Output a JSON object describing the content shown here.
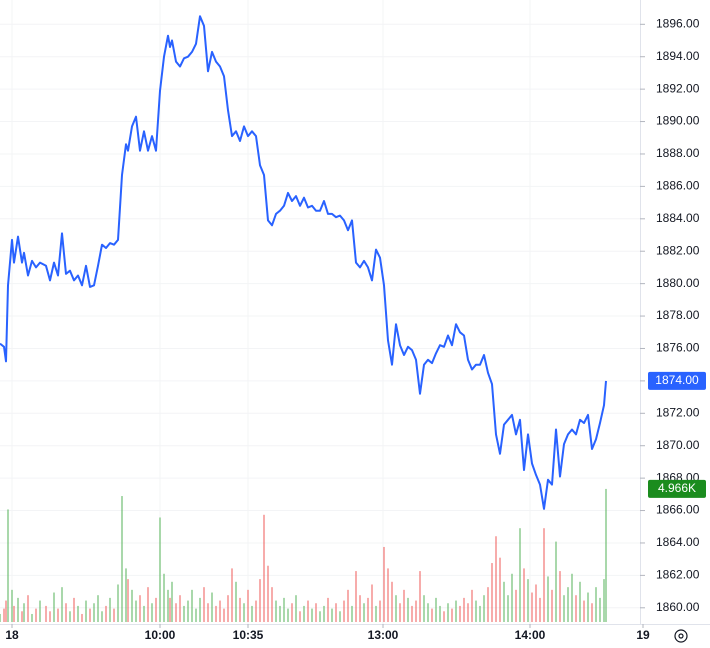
{
  "chart_data": {
    "type": "line",
    "x": [
      0,
      4,
      6,
      8,
      12,
      14,
      18,
      22,
      24,
      28,
      32,
      36,
      40,
      46,
      50,
      54,
      58,
      62,
      66,
      70,
      74,
      78,
      82,
      86,
      90,
      94,
      98,
      102,
      106,
      110,
      114,
      118,
      122,
      126,
      128,
      132,
      136,
      140,
      144,
      148,
      152,
      156,
      160,
      164,
      168,
      170,
      172,
      176,
      180,
      184,
      188,
      192,
      196,
      200,
      204,
      208,
      212,
      216,
      220,
      224,
      228,
      232,
      236,
      240,
      244,
      248,
      252,
      256,
      260,
      264,
      268,
      272,
      276,
      280,
      284,
      288,
      292,
      296,
      300,
      304,
      308,
      312,
      316,
      320,
      324,
      328,
      332,
      336,
      340,
      344,
      348,
      352,
      356,
      360,
      364,
      368,
      372,
      376,
      380,
      384,
      388,
      392,
      396,
      400,
      404,
      408,
      412,
      416,
      420,
      424,
      428,
      432,
      436,
      440,
      444,
      448,
      452,
      456,
      460,
      464,
      468,
      472,
      476,
      480,
      484,
      488,
      492,
      496,
      500,
      504,
      508,
      512,
      516,
      520,
      524,
      528,
      532,
      536,
      540,
      544,
      548,
      552,
      556,
      560,
      564,
      568,
      572,
      576,
      580,
      584,
      588,
      592,
      596,
      600,
      604,
      606
    ],
    "series": [
      {
        "name": "Price",
        "color": "#2962ff",
        "values": [
          1876.3,
          1876.1,
          1875.2,
          1879.9,
          1882.7,
          1881.3,
          1882.9,
          1881.3,
          1881.9,
          1880.5,
          1881.4,
          1881.0,
          1881.3,
          1881.1,
          1880.2,
          1881.3,
          1880.5,
          1883.1,
          1880.6,
          1880.8,
          1880.2,
          1880.5,
          1879.9,
          1881.1,
          1879.8,
          1879.9,
          1881.1,
          1882.4,
          1882.2,
          1882.5,
          1882.4,
          1882.7,
          1886.7,
          1888.6,
          1888.2,
          1889.7,
          1890.3,
          1888.2,
          1889.4,
          1888.2,
          1889.1,
          1888.2,
          1891.9,
          1894.0,
          1895.3,
          1894.6,
          1895.0,
          1893.7,
          1893.4,
          1893.9,
          1894.0,
          1894.3,
          1894.8,
          1896.5,
          1895.9,
          1893.1,
          1894.3,
          1893.7,
          1893.4,
          1892.8,
          1890.7,
          1889.1,
          1889.4,
          1888.8,
          1889.7,
          1889.1,
          1889.4,
          1889.1,
          1887.3,
          1886.7,
          1883.9,
          1883.6,
          1884.3,
          1884.5,
          1884.8,
          1885.6,
          1885.1,
          1885.4,
          1884.8,
          1885.3,
          1884.7,
          1884.8,
          1884.5,
          1884.5,
          1885.1,
          1884.3,
          1884.3,
          1884.1,
          1884.2,
          1883.9,
          1883.3,
          1883.9,
          1881.3,
          1881.0,
          1881.4,
          1881.0,
          1880.2,
          1882.1,
          1881.6,
          1879.9,
          1876.5,
          1875.0,
          1877.5,
          1876.2,
          1875.6,
          1876.1,
          1875.9,
          1875.3,
          1873.2,
          1875.0,
          1875.3,
          1875.1,
          1875.7,
          1876.2,
          1876.1,
          1876.8,
          1876.2,
          1877.5,
          1877.0,
          1876.8,
          1875.3,
          1874.7,
          1875.0,
          1875.0,
          1875.6,
          1874.5,
          1873.8,
          1870.7,
          1869.5,
          1871.3,
          1871.6,
          1871.9,
          1870.7,
          1871.6,
          1868.5,
          1870.7,
          1868.9,
          1868.2,
          1867.6,
          1866.1,
          1867.9,
          1867.6,
          1871.0,
          1868.1,
          1870.1,
          1870.7,
          1871.0,
          1870.7,
          1871.6,
          1871.4,
          1871.9,
          1869.8,
          1870.4,
          1871.4,
          1872.5,
          1874.0
        ]
      },
      {
        "name": "Volume",
        "axis": "y2",
        "up_color": "#4caf50",
        "down_color": "#ef5350",
        "values": [
          0.3,
          0.5,
          0.8,
          4.2,
          1.2,
          0.6,
          0.9,
          0.4,
          0.7,
          1.0,
          0.3,
          0.5,
          0.8,
          0.6,
          0.4,
          1.1,
          0.5,
          1.3,
          0.7,
          0.4,
          0.9,
          0.6,
          0.3,
          0.8,
          0.5,
          0.7,
          1.0,
          0.4,
          0.6,
          0.9,
          0.5,
          1.4,
          4.7,
          2.0,
          1.6,
          1.2,
          0.8,
          1.0,
          0.6,
          1.3,
          0.7,
          0.9,
          3.9,
          1.8,
          1.2,
          0.9,
          1.5,
          0.7,
          1.0,
          0.6,
          0.8,
          1.2,
          0.5,
          0.9,
          1.3,
          0.7,
          1.1,
          0.6,
          0.8,
          0.5,
          1.0,
          2.0,
          1.5,
          0.9,
          0.7,
          1.2,
          0.6,
          0.8,
          1.6,
          4.0,
          2.1,
          1.3,
          0.8,
          0.6,
          0.9,
          0.5,
          0.7,
          1.0,
          0.4,
          0.6,
          0.8,
          0.5,
          0.7,
          0.4,
          0.6,
          0.9,
          0.5,
          0.7,
          0.4,
          0.8,
          1.2,
          0.6,
          1.9,
          1.0,
          0.7,
          0.9,
          1.4,
          0.6,
          0.8,
          2.8,
          2.0,
          1.5,
          1.0,
          0.7,
          1.2,
          0.9,
          0.6,
          0.8,
          1.9,
          1.0,
          0.7,
          0.5,
          0.9,
          0.6,
          0.4,
          0.7,
          0.5,
          0.8,
          0.6,
          0.9,
          0.7,
          1.2,
          0.8,
          0.6,
          1.0,
          1.3,
          2.2,
          3.2,
          2.4,
          1.5,
          1.0,
          1.8,
          1.2,
          3.5,
          2.0,
          1.6,
          1.1,
          1.4,
          0.9,
          3.5,
          1.7,
          1.2,
          3.0,
          1.9,
          1.0,
          1.3,
          1.8,
          1.0,
          1.5,
          0.8,
          1.1,
          0.7,
          1.3,
          0.9,
          1.6,
          4.966
        ]
      }
    ],
    "xlim": [
      0,
      644
    ],
    "xticks": [
      {
        "value": 12,
        "label": "18"
      },
      {
        "value": 160,
        "label": "10:00"
      },
      {
        "value": 248,
        "label": "10:35"
      },
      {
        "value": 383,
        "label": "13:00"
      },
      {
        "value": 530,
        "label": "14:00"
      },
      {
        "value": 643,
        "label": "19"
      }
    ],
    "ylim": [
      1859,
      1897.5
    ],
    "yticks": [
      {
        "value": 1860,
        "label": "1860.00"
      },
      {
        "value": 1862,
        "label": "1862.00"
      },
      {
        "value": 1864,
        "label": "1864.00"
      },
      {
        "value": 1866,
        "label": "1866.00"
      },
      {
        "value": 1868,
        "label": "1868.00"
      },
      {
        "value": 1870,
        "label": "1870.00"
      },
      {
        "value": 1872,
        "label": "1872.00"
      },
      {
        "value": 1874,
        "label": "1874.00"
      },
      {
        "value": 1876,
        "label": "1876.00"
      },
      {
        "value": 1878,
        "label": "1878.00"
      },
      {
        "value": 1880,
        "label": "1880.00"
      },
      {
        "value": 1882,
        "label": "1882.00"
      },
      {
        "value": 1884,
        "label": "1884.00"
      },
      {
        "value": 1886,
        "label": "1886.00"
      },
      {
        "value": 1888,
        "label": "1888.00"
      },
      {
        "value": 1890,
        "label": "1890.00"
      },
      {
        "value": 1892,
        "label": "1892.00"
      },
      {
        "value": 1894,
        "label": "1894.00"
      },
      {
        "value": 1896,
        "label": "1896.00"
      }
    ],
    "y2lim": [
      0,
      5
    ],
    "last_price_label": "1874.00",
    "last_volume_label": "4.966K",
    "grid": true
  }
}
